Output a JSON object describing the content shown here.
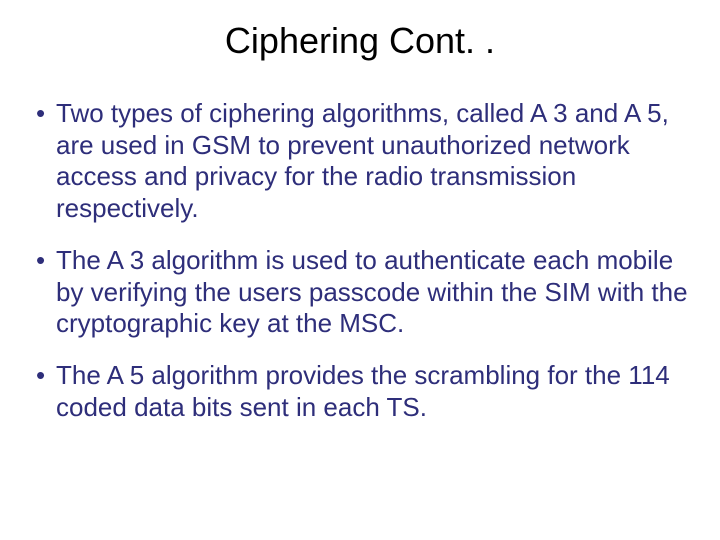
{
  "slide": {
    "title": "Ciphering Cont. .",
    "title_fontsize": 36,
    "title_color": "#000000",
    "bullet_fontsize": 26,
    "bullet_color": "#2e2e7a",
    "line_height": 1.22,
    "bullets": [
      "Two types of ciphering algorithms, called A 3 and A 5, are used in GSM to prevent unauthorized network access and privacy for the radio transmission respectively.",
      "The A 3 algorithm is used to authenticate each mobile by verifying the users passcode within the SIM with the cryptographic key at the MSC.",
      "The A 5 algorithm provides the scrambling for the 114 coded data bits sent in each TS."
    ],
    "background_color": "#ffffff"
  }
}
